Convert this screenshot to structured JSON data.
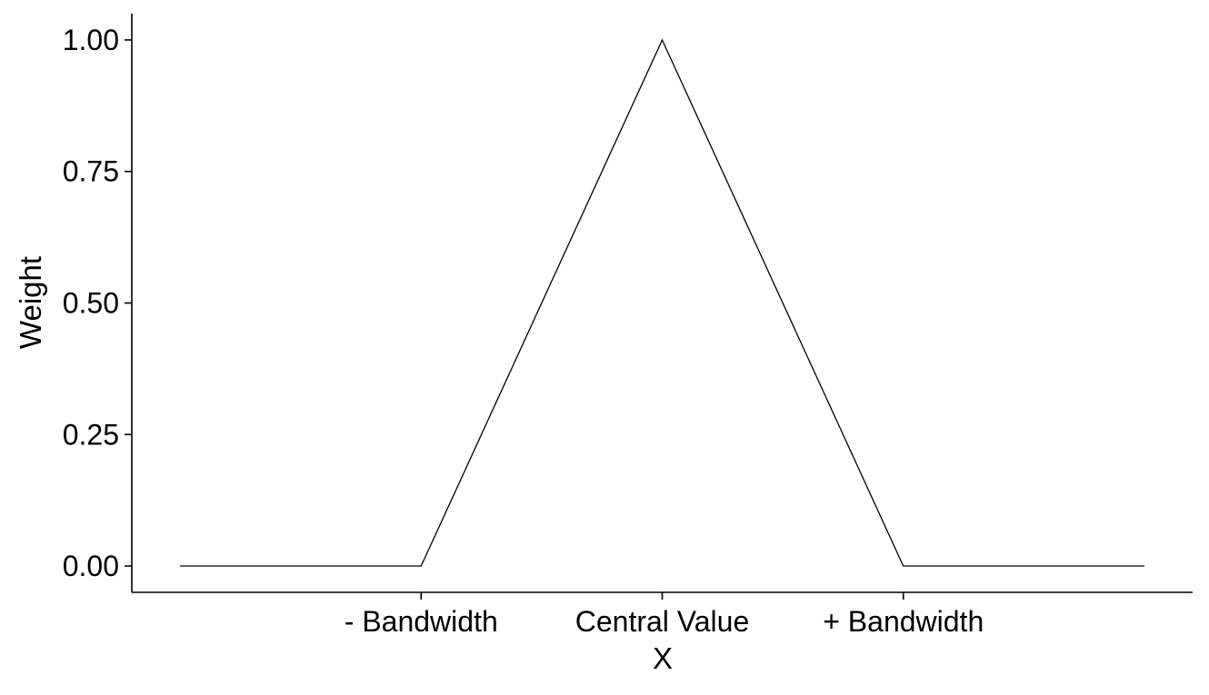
{
  "chart_data": {
    "type": "line",
    "title": "",
    "xlabel": "X",
    "ylabel": "Weight",
    "x_tick_labels": [
      {
        "x": -1,
        "label": "- Bandwidth"
      },
      {
        "x": 0,
        "label": "Central Value"
      },
      {
        "x": 1,
        "label": "+ Bandwidth"
      }
    ],
    "y_ticks": [
      0,
      0.25,
      0.5,
      0.75,
      1
    ],
    "y_tick_labels": [
      "0.00",
      "0.25",
      "0.50",
      "0.75",
      "1.00"
    ],
    "xlim": [
      -2.2,
      2.2
    ],
    "ylim": [
      -0.05,
      1.05
    ],
    "grid": false,
    "legend": "none",
    "series": [
      {
        "x": [
          -2,
          -1,
          0,
          1,
          2
        ],
        "y": [
          0,
          0,
          1,
          0,
          0
        ]
      }
    ],
    "colors": {
      "line": "#000000",
      "axis": "#000000"
    }
  }
}
